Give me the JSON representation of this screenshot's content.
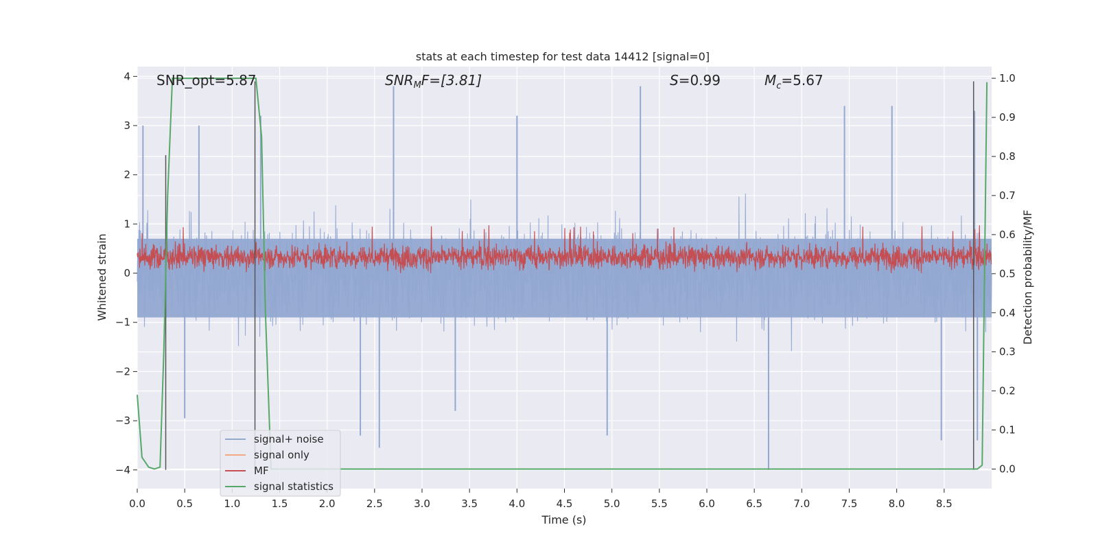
{
  "chart_data": {
    "type": "line",
    "title": "stats at each timestep for test data 14412 [signal=0]",
    "xlabel": "Time (s)",
    "ylabel_left": "Whitened strain",
    "ylabel_right": "Detection probability/MF",
    "xlim": [
      0.0,
      9.0
    ],
    "ylim_left": [
      -4.38,
      4.2
    ],
    "ylim_right": [
      -0.05,
      1.03
    ],
    "x_ticks": [
      "0.0",
      "0.5",
      "1.0",
      "1.5",
      "2.0",
      "2.5",
      "3.0",
      "3.5",
      "4.0",
      "4.5",
      "5.0",
      "5.5",
      "6.0",
      "6.5",
      "7.0",
      "7.5",
      "8.0",
      "8.5"
    ],
    "x_tick_values": [
      0.0,
      0.5,
      1.0,
      1.5,
      2.0,
      2.5,
      3.0,
      3.5,
      4.0,
      4.5,
      5.0,
      5.5,
      6.0,
      6.5,
      7.0,
      7.5,
      8.0,
      8.5
    ],
    "y_left_ticks": [
      "4",
      "3",
      "2",
      "1",
      "0",
      "−1",
      "−2",
      "−3",
      "−4"
    ],
    "y_left_tick_values": [
      4,
      3,
      2,
      1,
      0,
      -1,
      -2,
      -3,
      -4
    ],
    "y_right_ticks": [
      "1.0",
      "0.9",
      "0.8",
      "0.7",
      "0.6",
      "0.5",
      "0.4",
      "0.3",
      "0.2",
      "0.1",
      "0.0"
    ],
    "y_right_tick_values": [
      1.0,
      0.9,
      0.8,
      0.7,
      0.6,
      0.5,
      0.4,
      0.3,
      0.2,
      0.1,
      0.0
    ],
    "annotations": {
      "snr_opt": "SNR_opt=5.87",
      "snr_mf_base": "SNR",
      "snr_mf_sub": "M",
      "snr_mf_rest": "F=[3.81]",
      "s_sym": "S",
      "s_val": "=0.99",
      "mc_sym": "M",
      "mc_sub": "c",
      "mc_val": "=5.67"
    },
    "legend": {
      "position": "lower-left",
      "entries": [
        {
          "label": "signal+ noise",
          "color": "#92a8d1"
        },
        {
          "label": "signal only",
          "color": "#f1a883"
        },
        {
          "label": "MF",
          "color": "#c44e52"
        },
        {
          "label": "signal statistics",
          "color": "#55a868"
        }
      ]
    },
    "series": [
      {
        "name": "signal+ noise",
        "axis": "left",
        "color": "#92a8d1",
        "style": "dense-noise",
        "center": 0.0,
        "typical_range": [
          -1.5,
          1.5
        ],
        "peaks": [
          {
            "x": 2.7,
            "y": 3.8
          },
          {
            "x": 5.3,
            "y": 3.8
          },
          {
            "x": 0.06,
            "y": 3.0
          },
          {
            "x": 0.65,
            "y": 3.0
          },
          {
            "x": 1.3,
            "y": 3.2
          },
          {
            "x": 7.45,
            "y": 3.4
          },
          {
            "x": 7.95,
            "y": 3.4
          },
          {
            "x": 8.82,
            "y": 3.3
          },
          {
            "x": 4.0,
            "y": 3.2
          }
        ],
        "troughs": [
          {
            "x": 2.55,
            "y": -3.55
          },
          {
            "x": 4.95,
            "y": -3.3
          },
          {
            "x": 6.65,
            "y": -4.0
          },
          {
            "x": 8.47,
            "y": -3.4
          },
          {
            "x": 2.35,
            "y": -3.3
          },
          {
            "x": 0.5,
            "y": -2.95
          },
          {
            "x": 3.35,
            "y": -2.8
          },
          {
            "x": 8.85,
            "y": -3.4
          }
        ]
      },
      {
        "name": "signal only",
        "axis": "left",
        "color": "#f1a883",
        "values": []
      },
      {
        "name": "MF",
        "axis": "left",
        "color": "#c44e52",
        "style": "dense-noise",
        "center": 0.33,
        "typical_range": [
          0.0,
          0.7
        ],
        "max": 0.98
      },
      {
        "name": "signal statistics",
        "axis": "right",
        "color": "#55a868",
        "x": [
          0.0,
          0.05,
          0.12,
          0.18,
          0.24,
          0.28,
          0.32,
          0.37,
          0.45,
          0.6,
          0.8,
          1.0,
          1.2,
          1.25,
          1.31,
          1.35,
          1.41,
          1.6,
          2.0,
          3.0,
          4.0,
          5.0,
          6.0,
          7.0,
          8.0,
          8.5,
          8.7,
          8.85,
          8.9,
          8.95
        ],
        "y": [
          0.19,
          0.03,
          0.005,
          0.0,
          0.005,
          0.3,
          0.7,
          1.0,
          1.0,
          1.0,
          1.0,
          1.0,
          1.0,
          1.0,
          0.85,
          0.4,
          0.0,
          0.0,
          0.0,
          0.0,
          0.0,
          0.0,
          0.0,
          0.0,
          0.0,
          0.0,
          0.0,
          0.0,
          0.01,
          0.99
        ]
      }
    ],
    "vertical_markers": [
      {
        "x": 0.3,
        "y_from": -4.0,
        "y_to": 2.4
      },
      {
        "x": 1.24,
        "y_from": -4.0,
        "y_to": 3.9
      },
      {
        "x": 8.81,
        "y_from": -4.0,
        "y_to": 3.9
      }
    ]
  }
}
